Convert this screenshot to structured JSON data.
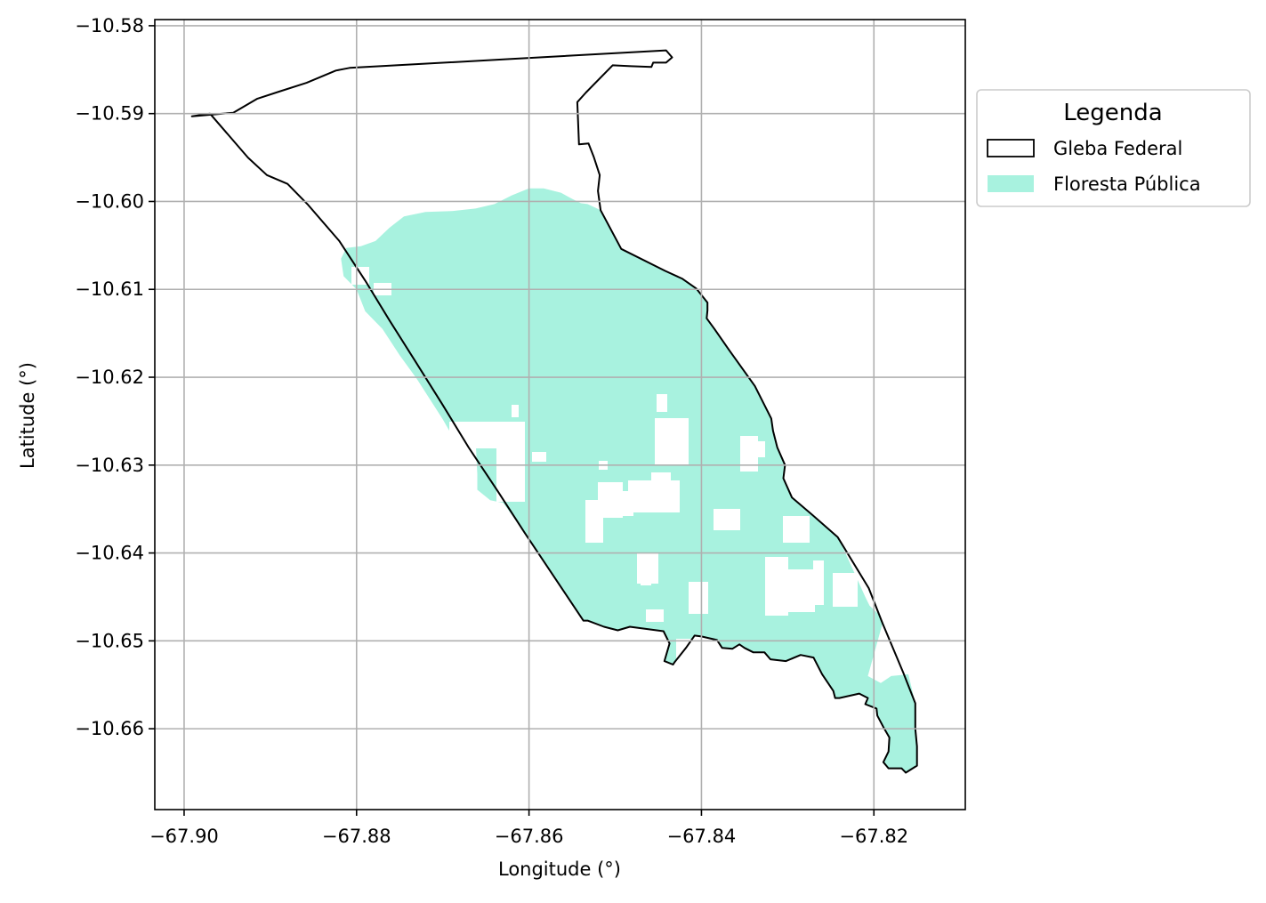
{
  "chart_data": {
    "type": "map",
    "xlabel": "Longitude (°)",
    "ylabel": "Latitude (°)",
    "xlim": [
      -67.9034,
      -67.8094
    ],
    "ylim": [
      -10.6692,
      -10.5793
    ],
    "xticks": [
      -67.9,
      -67.88,
      -67.86,
      -67.84,
      -67.82
    ],
    "yticks": [
      -10.58,
      -10.59,
      -10.6,
      -10.61,
      -10.62,
      -10.63,
      -10.64,
      -10.65,
      -10.66
    ],
    "xtick_labels": [
      "−67.90",
      "−67.88",
      "−67.86",
      "−67.84",
      "−67.82"
    ],
    "ytick_labels": [
      "−10.58",
      "−10.59",
      "−10.60",
      "−10.61",
      "−10.62",
      "−10.63",
      "−10.64",
      "−10.65",
      "−10.66"
    ],
    "grid": true,
    "legend": {
      "title": "Legenda",
      "placement": "outside right, upper",
      "entries": [
        {
          "label": "Gleba Federal",
          "style": "outline",
          "color": "#000000"
        },
        {
          "label": "Floresta Pública",
          "style": "fill",
          "color": "#a8f2df"
        }
      ]
    },
    "layers": [
      {
        "name": "Gleba Federal",
        "type": "polygon-outline",
        "color": "#000000",
        "coordinates": [
          [
            -67.8991,
            -10.5903
          ],
          [
            -67.8943,
            -10.5899
          ],
          [
            -67.8915,
            -10.5883
          ],
          [
            -67.889,
            -10.5875
          ],
          [
            -67.8858,
            -10.5865
          ],
          [
            -67.8824,
            -10.5851
          ],
          [
            -67.8808,
            -10.5848
          ],
          [
            -67.8623,
            -10.5838
          ],
          [
            -67.8441,
            -10.5828
          ],
          [
            -67.8434,
            -10.5836
          ],
          [
            -67.8441,
            -10.5842
          ],
          [
            -67.8456,
            -10.5842
          ],
          [
            -67.8458,
            -10.5847
          ],
          [
            -67.8482,
            -10.5846
          ],
          [
            -67.8503,
            -10.5845
          ],
          [
            -67.8534,
            -10.5876
          ],
          [
            -67.8544,
            -10.5887
          ],
          [
            -67.8542,
            -10.5935
          ],
          [
            -67.8531,
            -10.5934
          ],
          [
            -67.8525,
            -10.5949
          ],
          [
            -67.8518,
            -10.597
          ],
          [
            -67.852,
            -10.5988
          ],
          [
            -67.8517,
            -10.601
          ],
          [
            -67.8493,
            -10.6054
          ],
          [
            -67.8442,
            -10.6079
          ],
          [
            -67.8422,
            -10.6088
          ],
          [
            -67.8406,
            -10.6099
          ],
          [
            -67.8393,
            -10.6115
          ],
          [
            -67.8393,
            -10.6124
          ],
          [
            -67.8394,
            -10.6133
          ],
          [
            -67.8385,
            -10.6145
          ],
          [
            -67.8368,
            -10.6169
          ],
          [
            -67.8338,
            -10.621
          ],
          [
            -67.8319,
            -10.6247
          ],
          [
            -67.8317,
            -10.6261
          ],
          [
            -67.8312,
            -10.628
          ],
          [
            -67.8303,
            -10.63
          ],
          [
            -67.8305,
            -10.6315
          ],
          [
            -67.8295,
            -10.6337
          ],
          [
            -67.8271,
            -10.6357
          ],
          [
            -67.8242,
            -10.6382
          ],
          [
            -67.8206,
            -10.644
          ],
          [
            -67.819,
            -10.648
          ],
          [
            -67.8166,
            -10.6536
          ],
          [
            -67.8152,
            -10.6571
          ],
          [
            -67.8152,
            -10.66
          ],
          [
            -67.815,
            -10.662
          ],
          [
            -67.815,
            -10.6642
          ],
          [
            -67.8163,
            -10.665
          ],
          [
            -67.8168,
            -10.6645
          ],
          [
            -67.8183,
            -10.6645
          ],
          [
            -67.8189,
            -10.6638
          ],
          [
            -67.8183,
            -10.6626
          ],
          [
            -67.8182,
            -10.661
          ],
          [
            -67.8189,
            -10.6598
          ],
          [
            -67.8196,
            -10.6585
          ],
          [
            -67.8197,
            -10.6577
          ],
          [
            -67.821,
            -10.6572
          ],
          [
            -67.8207,
            -10.6565
          ],
          [
            -67.8217,
            -10.656
          ],
          [
            -67.824,
            -10.6565
          ],
          [
            -67.8245,
            -10.6565
          ],
          [
            -67.8247,
            -10.6557
          ],
          [
            -67.826,
            -10.6538
          ],
          [
            -67.827,
            -10.6519
          ],
          [
            -67.8285,
            -10.6516
          ],
          [
            -67.8302,
            -10.6523
          ],
          [
            -67.832,
            -10.6521
          ],
          [
            -67.8327,
            -10.6513
          ],
          [
            -67.834,
            -10.6513
          ],
          [
            -67.835,
            -10.6508
          ],
          [
            -67.8356,
            -10.6504
          ],
          [
            -67.8364,
            -10.6509
          ],
          [
            -67.8376,
            -10.6508
          ],
          [
            -67.8382,
            -10.6499
          ],
          [
            -67.84,
            -10.6495
          ],
          [
            -67.8408,
            -10.6494
          ],
          [
            -67.8418,
            -10.6508
          ],
          [
            -67.8431,
            -10.6524
          ],
          [
            -67.8433,
            -10.6527
          ],
          [
            -67.8443,
            -10.6523
          ],
          [
            -67.8437,
            -10.6503
          ],
          [
            -67.8444,
            -10.6489
          ],
          [
            -67.8483,
            -10.6484
          ],
          [
            -67.8497,
            -10.6488
          ],
          [
            -67.8513,
            -10.6484
          ],
          [
            -67.8532,
            -10.6477
          ],
          [
            -67.8537,
            -10.6477
          ],
          [
            -67.8571,
            -10.6427
          ],
          [
            -67.8605,
            -10.6377
          ],
          [
            -67.8636,
            -10.633
          ],
          [
            -67.867,
            -10.628
          ],
          [
            -67.8701,
            -10.623
          ],
          [
            -67.8733,
            -10.618
          ],
          [
            -67.8762,
            -10.6135
          ],
          [
            -67.879,
            -10.609
          ],
          [
            -67.882,
            -10.6045
          ],
          [
            -67.8857,
            -10.6003
          ],
          [
            -67.888,
            -10.598
          ],
          [
            -67.8904,
            -10.597
          ],
          [
            -67.8926,
            -10.595
          ],
          [
            -67.897,
            -10.59
          ],
          [
            -67.8991,
            -10.5903
          ]
        ]
      },
      {
        "name": "Floresta Pública",
        "type": "raster-fill",
        "color": "#a8f2df",
        "coordinates": [
          [
            -67.8812,
            -10.6053
          ],
          [
            -67.8795,
            -10.6051
          ],
          [
            -67.8778,
            -10.6045
          ],
          [
            -67.8762,
            -10.603
          ],
          [
            -67.8745,
            -10.6017
          ],
          [
            -67.872,
            -10.6012
          ],
          [
            -67.869,
            -10.6011
          ],
          [
            -67.8662,
            -10.6008
          ],
          [
            -67.864,
            -10.6003
          ],
          [
            -67.862,
            -10.5993
          ],
          [
            -67.86,
            -10.5985
          ],
          [
            -67.8583,
            -10.5985
          ],
          [
            -67.8563,
            -10.599
          ],
          [
            -67.855,
            -10.5997
          ],
          [
            -67.854,
            -10.6002
          ],
          [
            -67.8532,
            -10.6003
          ],
          [
            -67.8517,
            -10.601
          ],
          [
            -67.8493,
            -10.6054
          ],
          [
            -67.8442,
            -10.6079
          ],
          [
            -67.8422,
            -10.6088
          ],
          [
            -67.8406,
            -10.6099
          ],
          [
            -67.8393,
            -10.6115
          ],
          [
            -67.8393,
            -10.6124
          ],
          [
            -67.8394,
            -10.6133
          ],
          [
            -67.8385,
            -10.6145
          ],
          [
            -67.8368,
            -10.6169
          ],
          [
            -67.8338,
            -10.621
          ],
          [
            -67.8319,
            -10.6247
          ],
          [
            -67.8317,
            -10.6261
          ],
          [
            -67.8312,
            -10.628
          ],
          [
            -67.8303,
            -10.63
          ],
          [
            -67.8305,
            -10.6315
          ],
          [
            -67.8295,
            -10.6337
          ],
          [
            -67.8271,
            -10.6357
          ],
          [
            -67.8242,
            -10.6382
          ],
          [
            -67.8233,
            -10.64
          ],
          [
            -67.821,
            -10.645
          ],
          [
            -67.8205,
            -10.646
          ],
          [
            -67.8193,
            -10.6471
          ],
          [
            -67.819,
            -10.648
          ],
          [
            -67.8207,
            -10.654
          ],
          [
            -67.8192,
            -10.6548
          ],
          [
            -67.818,
            -10.654
          ],
          [
            -67.816,
            -10.6538
          ],
          [
            -67.8152,
            -10.6571
          ],
          [
            -67.8152,
            -10.66
          ],
          [
            -67.815,
            -10.662
          ],
          [
            -67.815,
            -10.6642
          ],
          [
            -67.8163,
            -10.665
          ],
          [
            -67.8168,
            -10.6645
          ],
          [
            -67.8183,
            -10.6645
          ],
          [
            -67.8189,
            -10.6638
          ],
          [
            -67.8183,
            -10.6626
          ],
          [
            -67.8182,
            -10.661
          ],
          [
            -67.8189,
            -10.6598
          ],
          [
            -67.8196,
            -10.6585
          ],
          [
            -67.8197,
            -10.6577
          ],
          [
            -67.821,
            -10.6572
          ],
          [
            -67.8207,
            -10.6565
          ],
          [
            -67.8217,
            -10.656
          ],
          [
            -67.824,
            -10.6565
          ],
          [
            -67.8245,
            -10.6565
          ],
          [
            -67.8247,
            -10.6557
          ],
          [
            -67.826,
            -10.6538
          ],
          [
            -67.827,
            -10.6519
          ],
          [
            -67.8285,
            -10.6516
          ],
          [
            -67.8302,
            -10.6523
          ],
          [
            -67.832,
            -10.6521
          ],
          [
            -67.8327,
            -10.6513
          ],
          [
            -67.834,
            -10.6513
          ],
          [
            -67.835,
            -10.6508
          ],
          [
            -67.8356,
            -10.6504
          ],
          [
            -67.8364,
            -10.6509
          ],
          [
            -67.8376,
            -10.6508
          ],
          [
            -67.8382,
            -10.6499
          ],
          [
            -67.84,
            -10.6495
          ],
          [
            -67.8408,
            -10.6494
          ],
          [
            -67.8418,
            -10.6508
          ],
          [
            -67.8431,
            -10.6524
          ],
          [
            -67.8433,
            -10.6527
          ],
          [
            -67.8443,
            -10.6523
          ],
          [
            -67.8437,
            -10.6503
          ],
          [
            -67.8444,
            -10.6489
          ],
          [
            -67.8483,
            -10.6484
          ],
          [
            -67.8497,
            -10.6488
          ],
          [
            -67.8513,
            -10.6484
          ],
          [
            -67.8532,
            -10.6477
          ],
          [
            -67.8537,
            -10.6477
          ],
          [
            -67.8571,
            -10.6427
          ],
          [
            -67.8605,
            -10.6377
          ],
          [
            -67.863,
            -10.6343
          ],
          [
            -67.8645,
            -10.634
          ],
          [
            -67.866,
            -10.6328
          ],
          [
            -67.866,
            -10.631
          ],
          [
            -67.8662,
            -10.627
          ],
          [
            -67.869,
            -10.6265
          ],
          [
            -67.87,
            -10.6248
          ],
          [
            -67.8715,
            -10.6225
          ],
          [
            -67.873,
            -10.6202
          ],
          [
            -67.875,
            -10.6175
          ],
          [
            -67.877,
            -10.6145
          ],
          [
            -67.879,
            -10.6125
          ],
          [
            -67.88,
            -10.61
          ],
          [
            -67.8815,
            -10.6085
          ],
          [
            -67.8818,
            -10.6065
          ],
          [
            -67.8812,
            -10.6053
          ]
        ]
      }
    ]
  }
}
